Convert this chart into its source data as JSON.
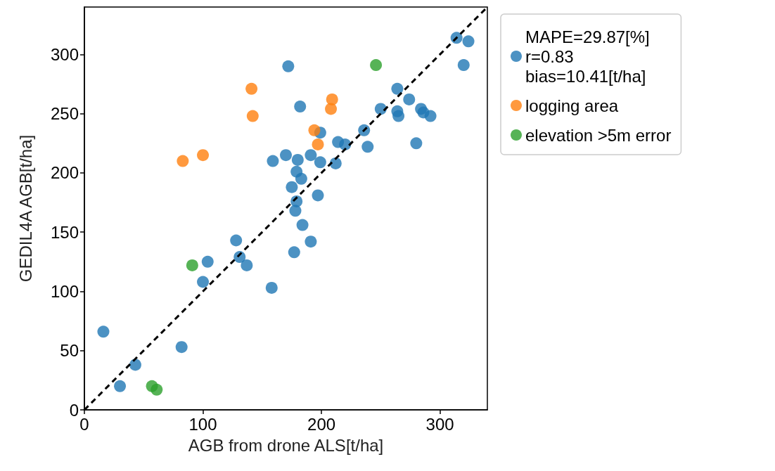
{
  "chart_data": {
    "type": "scatter",
    "xlabel": "AGB from drone ALS[t/ha]",
    "ylabel": "GEDIL4A AGB[t/ha]",
    "xlim": [
      0,
      340
    ],
    "xticks": [
      0,
      100,
      200,
      300
    ],
    "ylim": [
      0,
      340
    ],
    "yticks": [
      0,
      50,
      100,
      150,
      200,
      250,
      300
    ],
    "grid": false,
    "legend": "right",
    "marker": "circle",
    "series": [
      {
        "name": "MAPE=29.87[%]\nr=0.83\nbias=10.41[t/ha]",
        "color": "#1f77b4",
        "x": [
          16,
          30,
          43,
          82,
          100,
          104,
          128,
          131,
          137,
          158,
          159,
          170,
          172,
          175,
          177,
          178,
          179,
          179,
          180,
          182,
          183,
          184,
          191,
          191,
          197,
          199,
          199,
          212,
          214,
          220,
          236,
          239,
          250,
          264,
          264,
          265,
          274,
          280,
          284,
          286,
          292,
          314,
          320,
          324
        ],
        "values": [
          66,
          20,
          38,
          53,
          108,
          125,
          143,
          129,
          122,
          103,
          210,
          215,
          290,
          188,
          133,
          168,
          176,
          201,
          211,
          256,
          195,
          156,
          215,
          142,
          181,
          209,
          234,
          208,
          226,
          224,
          236,
          222,
          254,
          271,
          252,
          248,
          262,
          225,
          254,
          251,
          248,
          314,
          291,
          311
        ]
      },
      {
        "name": "logging area",
        "color": "#ff7f0e",
        "x": [
          83,
          100,
          141,
          142,
          194,
          197,
          208,
          209
        ],
        "values": [
          210,
          215,
          271,
          248,
          236,
          224,
          254,
          262
        ]
      },
      {
        "name": "elevation >5m error",
        "color": "#2ca02c",
        "x": [
          57,
          61,
          91,
          246
        ],
        "values": [
          20,
          17,
          122,
          291
        ]
      },
      {
        "type": "line",
        "color": "#000000",
        "line_style": "dashed",
        "marker": "none",
        "x": [
          0,
          340
        ],
        "values": [
          0,
          340
        ]
      }
    ]
  }
}
